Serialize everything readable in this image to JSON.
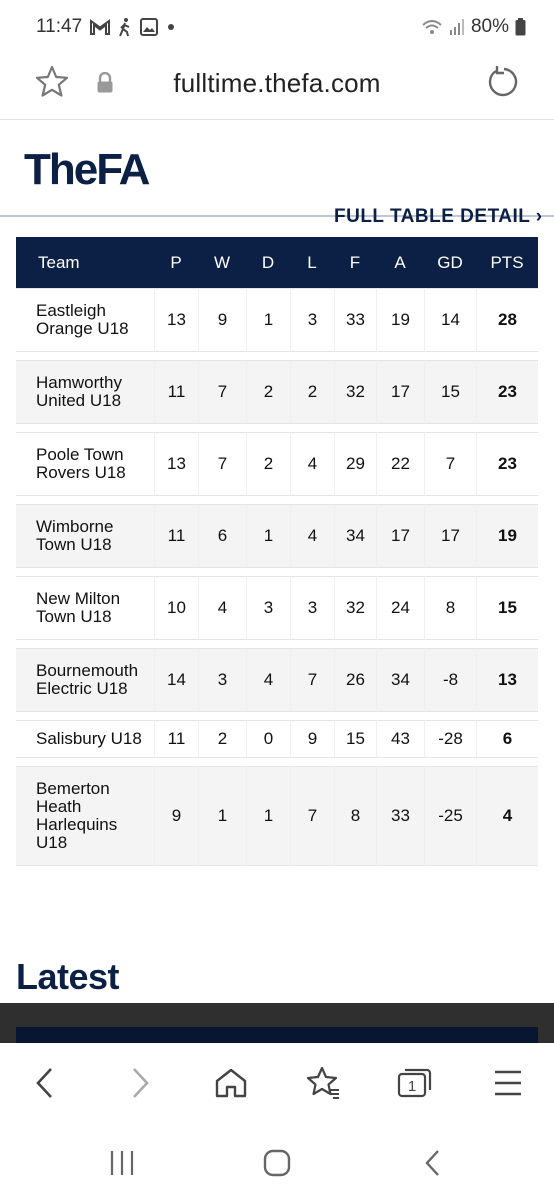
{
  "status_bar": {
    "time": "11:47",
    "battery": "80%",
    "icons": [
      "gmail-icon",
      "walking-icon",
      "image-icon",
      "dot-icon",
      "wifi-icon",
      "signal-icon",
      "battery-icon"
    ]
  },
  "browser": {
    "url": "fulltime.thefa.com"
  },
  "site": {
    "logo": "TheFA",
    "full_table_link": "FULL TABLE DETAIL ›"
  },
  "table": {
    "headers": [
      "Team",
      "P",
      "W",
      "D",
      "L",
      "F",
      "A",
      "GD",
      "PTS"
    ],
    "rows": [
      {
        "team": [
          "Eastleigh",
          "Orange U18"
        ],
        "p": "13",
        "w": "9",
        "d": "1",
        "l": "3",
        "f": "33",
        "a": "19",
        "gd": "14",
        "pts": "28"
      },
      {
        "team": [
          "Hamworthy",
          "United U18"
        ],
        "p": "11",
        "w": "7",
        "d": "2",
        "l": "2",
        "f": "32",
        "a": "17",
        "gd": "15",
        "pts": "23"
      },
      {
        "team": [
          "Poole Town",
          "Rovers U18"
        ],
        "p": "13",
        "w": "7",
        "d": "2",
        "l": "4",
        "f": "29",
        "a": "22",
        "gd": "7",
        "pts": "23"
      },
      {
        "team": [
          "Wimborne",
          "Town U18"
        ],
        "p": "11",
        "w": "6",
        "d": "1",
        "l": "4",
        "f": "34",
        "a": "17",
        "gd": "17",
        "pts": "19"
      },
      {
        "team": [
          "New Milton",
          "Town U18"
        ],
        "p": "10",
        "w": "4",
        "d": "3",
        "l": "3",
        "f": "32",
        "a": "24",
        "gd": "8",
        "pts": "15"
      },
      {
        "team": [
          "Bournemouth",
          "Electric U18"
        ],
        "p": "14",
        "w": "3",
        "d": "4",
        "l": "7",
        "f": "26",
        "a": "34",
        "gd": "-8",
        "pts": "13"
      },
      {
        "team": [
          "Salisbury U18"
        ],
        "p": "11",
        "w": "2",
        "d": "0",
        "l": "9",
        "f": "15",
        "a": "43",
        "gd": "-28",
        "pts": "6"
      },
      {
        "team": [
          "Bemerton",
          "Heath",
          "Harlequins",
          "U18"
        ],
        "p": "9",
        "w": "1",
        "d": "1",
        "l": "7",
        "f": "8",
        "a": "33",
        "gd": "-25",
        "pts": "4"
      }
    ]
  },
  "latest": {
    "heading": "Latest"
  },
  "browser_nav": {
    "tab_count": "1",
    "buttons": [
      "back-icon",
      "forward-icon",
      "home-icon",
      "bookmarks-icon",
      "tabs-icon",
      "menu-icon"
    ]
  },
  "system_nav": {
    "buttons": [
      "recents-icon",
      "home-circle-icon",
      "system-back-icon"
    ]
  },
  "colors": {
    "brand_navy": "#0c1f45",
    "row_alt": "#f4f4f4"
  }
}
